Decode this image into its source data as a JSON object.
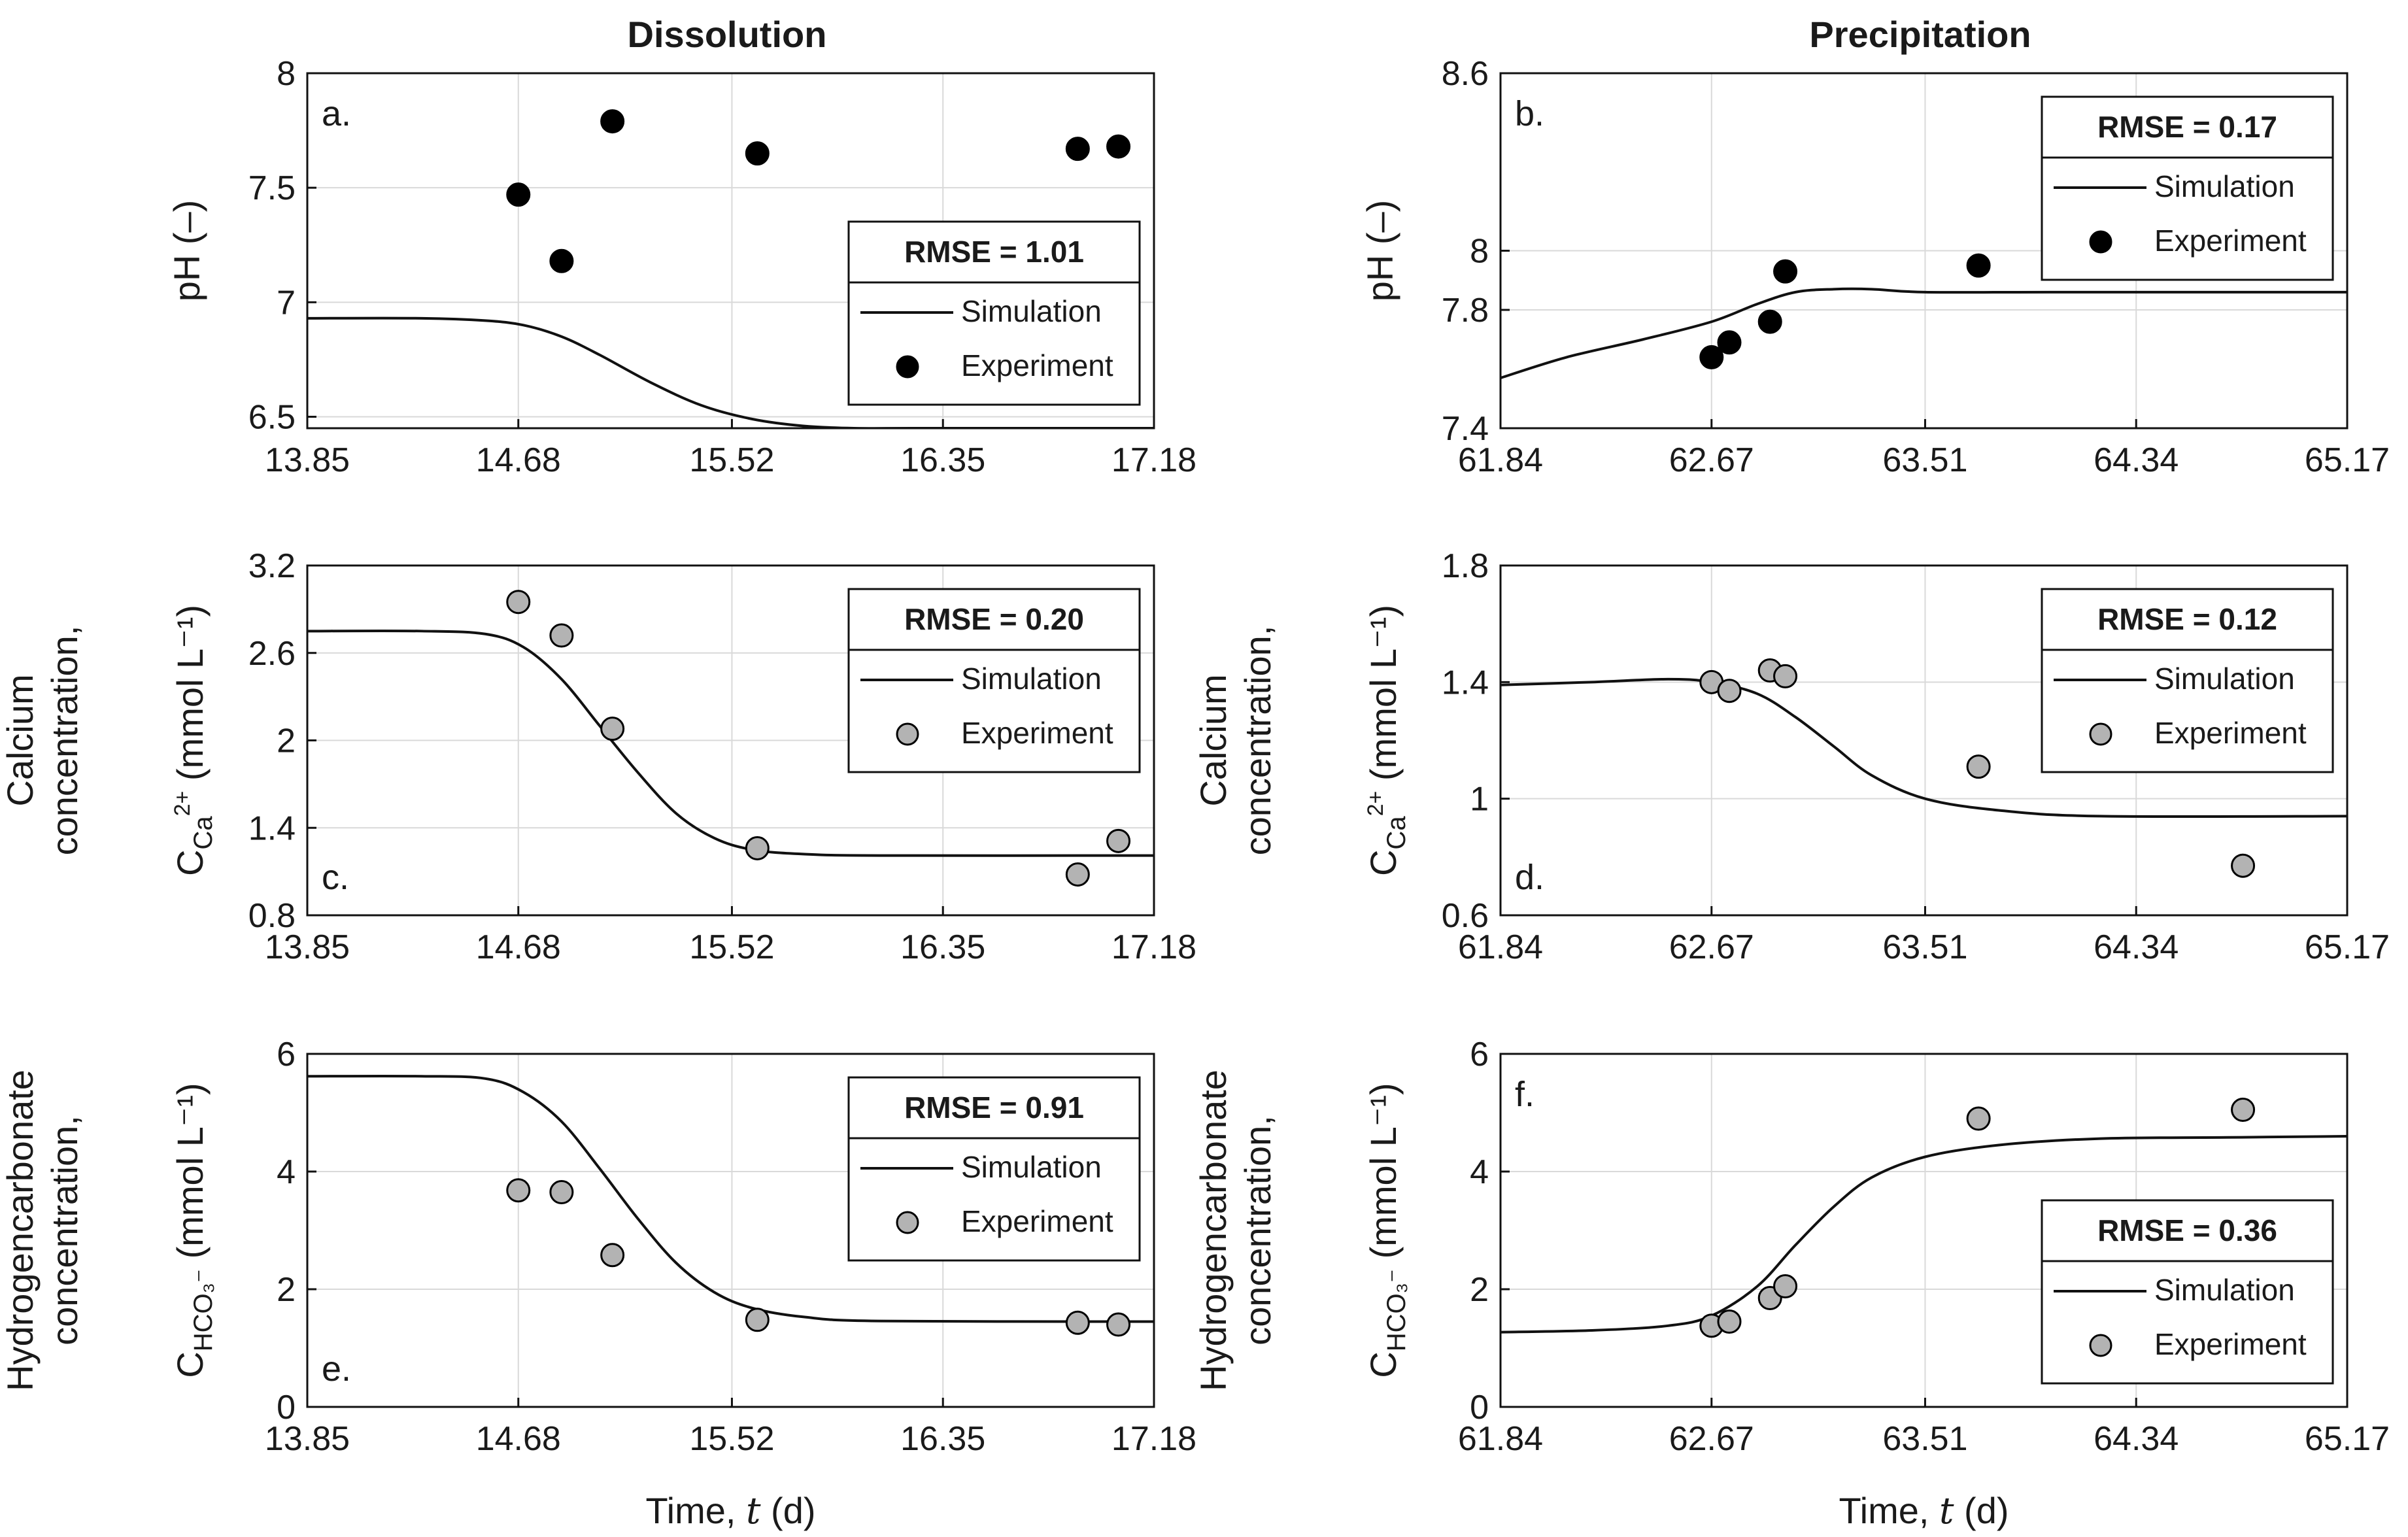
{
  "figure": {
    "col_titles": [
      "Dissolution",
      "Precipitation"
    ],
    "x_axis_label": {
      "prefix": "Time, ",
      "var": "t",
      "suffix": " (d)"
    },
    "legend_sim_label": "Simulation",
    "legend_exp_label": "Experiment"
  },
  "row_labels": [
    {
      "lines": [],
      "quantity": "pH (–)",
      "symbol": "",
      "sub": "",
      "sup": "",
      "unit": ""
    },
    {
      "lines": [
        "Calcium",
        "concentration,"
      ],
      "quantity": "",
      "symbol": "C",
      "sub": "Ca",
      "sup": "2+",
      "unit": "(mmol L⁻¹)"
    },
    {
      "lines": [
        "Hydrogencarbonate",
        "concentration,"
      ],
      "quantity": "",
      "symbol": "C",
      "sub": "HCO₃⁻",
      "sup": "",
      "unit": "(mmol L⁻¹)"
    }
  ],
  "colors": {
    "frame": "#111111",
    "grid": "#d9d9d9",
    "marker_black": "#000000",
    "marker_grey": "#b3b3b3"
  },
  "chart_data": [
    {
      "id": "a",
      "letter": "a.",
      "type": "scatter",
      "series_type": "line+scatter",
      "xlim": [
        13.85,
        17.18
      ],
      "xticks": [
        "13.85",
        "14.68",
        "15.52",
        "16.35",
        "17.18"
      ],
      "ylim": [
        6.45,
        8.0
      ],
      "yticks": [
        "6.5",
        "7",
        "7.5",
        "8"
      ],
      "simulation": {
        "name": "Simulation",
        "x": [
          13.85,
          14.3,
          14.55,
          14.7,
          14.85,
          15.0,
          15.2,
          15.4,
          15.6,
          15.8,
          16.0,
          16.3,
          17.18
        ],
        "y": [
          6.93,
          6.93,
          6.92,
          6.9,
          6.85,
          6.77,
          6.65,
          6.55,
          6.49,
          6.46,
          6.45,
          6.45,
          6.45
        ]
      },
      "experiment": {
        "name": "Experiment",
        "x": [
          14.68,
          14.85,
          15.05,
          15.62,
          16.88,
          17.04
        ],
        "y": [
          7.47,
          7.18,
          7.79,
          7.65,
          7.67,
          7.68
        ]
      },
      "rmse": "RMSE = 1.01",
      "legend_pos": "lower-right",
      "marker_color": "marker_black"
    },
    {
      "id": "b",
      "letter": "b.",
      "type": "scatter",
      "series_type": "line+scatter",
      "xlim": [
        61.84,
        65.17
      ],
      "xticks": [
        "61.84",
        "62.67",
        "63.51",
        "64.34",
        "65.17"
      ],
      "ylim": [
        7.4,
        8.6
      ],
      "yticks": [
        "7.4",
        "7.8",
        "8",
        "8.6"
      ],
      "simulation": {
        "name": "Simulation",
        "x": [
          61.84,
          62.1,
          62.4,
          62.67,
          62.85,
          63.0,
          63.15,
          63.3,
          63.51,
          64.0,
          65.17
        ],
        "y": [
          7.57,
          7.64,
          7.7,
          7.76,
          7.82,
          7.86,
          7.87,
          7.87,
          7.86,
          7.86,
          7.86
        ]
      },
      "experiment": {
        "name": "Experiment",
        "x": [
          62.67,
          62.74,
          62.9,
          62.96,
          63.72
        ],
        "y": [
          7.64,
          7.69,
          7.76,
          7.93,
          7.95
        ]
      },
      "rmse": "RMSE = 0.17",
      "legend_pos": "upper-right",
      "marker_color": "marker_black"
    },
    {
      "id": "c",
      "letter": "c.",
      "type": "scatter",
      "series_type": "line+scatter",
      "xlim": [
        13.85,
        17.18
      ],
      "xticks": [
        "13.85",
        "14.68",
        "15.52",
        "16.35",
        "17.18"
      ],
      "ylim": [
        0.8,
        3.2
      ],
      "yticks": [
        "0.8",
        "1.4",
        "2",
        "2.6",
        "3.2"
      ],
      "simulation": {
        "name": "Simulation",
        "x": [
          13.85,
          14.3,
          14.55,
          14.7,
          14.85,
          15.0,
          15.15,
          15.3,
          15.45,
          15.6,
          15.8,
          16.1,
          17.18
        ],
        "y": [
          2.75,
          2.75,
          2.73,
          2.64,
          2.42,
          2.1,
          1.78,
          1.5,
          1.33,
          1.25,
          1.22,
          1.21,
          1.21
        ]
      },
      "experiment": {
        "name": "Experiment",
        "x": [
          14.68,
          14.85,
          15.05,
          15.62,
          16.88,
          17.04
        ],
        "y": [
          2.95,
          2.72,
          2.08,
          1.26,
          1.08,
          1.31
        ]
      },
      "rmse": "RMSE = 0.20",
      "legend_pos": "upper-right",
      "marker_color": "marker_grey"
    },
    {
      "id": "d",
      "letter": "d.",
      "type": "scatter",
      "series_type": "line+scatter",
      "xlim": [
        61.84,
        65.17
      ],
      "xticks": [
        "61.84",
        "62.67",
        "63.51",
        "64.34",
        "65.17"
      ],
      "ylim": [
        0.6,
        1.8
      ],
      "yticks": [
        "0.6",
        "1",
        "1.4",
        "1.8"
      ],
      "simulation": {
        "name": "Simulation",
        "x": [
          61.84,
          62.2,
          62.5,
          62.67,
          62.85,
          63.0,
          63.15,
          63.3,
          63.51,
          63.8,
          64.2,
          65.17
        ],
        "y": [
          1.39,
          1.4,
          1.41,
          1.4,
          1.36,
          1.28,
          1.18,
          1.08,
          1.0,
          0.96,
          0.94,
          0.94
        ]
      },
      "experiment": {
        "name": "Experiment",
        "x": [
          62.67,
          62.74,
          62.9,
          62.96,
          63.72,
          64.76
        ],
        "y": [
          1.4,
          1.37,
          1.44,
          1.42,
          1.11,
          0.77
        ]
      },
      "rmse": "RMSE = 0.12",
      "legend_pos": "upper-right",
      "marker_color": "marker_grey"
    },
    {
      "id": "e",
      "letter": "e.",
      "type": "scatter",
      "series_type": "line+scatter",
      "xlim": [
        13.85,
        17.18
      ],
      "xticks": [
        "13.85",
        "14.68",
        "15.52",
        "16.35",
        "17.18"
      ],
      "ylim": [
        0,
        6
      ],
      "yticks": [
        "0",
        "2",
        "4",
        "6"
      ],
      "simulation": {
        "name": "Simulation",
        "x": [
          13.85,
          14.3,
          14.55,
          14.7,
          14.85,
          15.0,
          15.15,
          15.3,
          15.45,
          15.6,
          15.8,
          16.1,
          17.18
        ],
        "y": [
          5.62,
          5.62,
          5.58,
          5.35,
          4.85,
          4.05,
          3.2,
          2.45,
          1.95,
          1.68,
          1.53,
          1.46,
          1.45
        ]
      },
      "experiment": {
        "name": "Experiment",
        "x": [
          14.68,
          14.85,
          15.05,
          15.62,
          16.88,
          17.04
        ],
        "y": [
          3.68,
          3.65,
          2.58,
          1.48,
          1.43,
          1.4
        ]
      },
      "rmse": "RMSE = 0.91",
      "legend_pos": "upper-right",
      "marker_color": "marker_grey"
    },
    {
      "id": "f",
      "letter": "f.",
      "type": "scatter",
      "series_type": "line+scatter",
      "xlim": [
        61.84,
        65.17
      ],
      "xticks": [
        "61.84",
        "62.67",
        "63.51",
        "64.34",
        "65.17"
      ],
      "ylim": [
        0,
        6
      ],
      "yticks": [
        "0",
        "2",
        "4",
        "6"
      ],
      "simulation": {
        "name": "Simulation",
        "x": [
          61.84,
          62.2,
          62.5,
          62.67,
          62.85,
          63.0,
          63.15,
          63.3,
          63.51,
          63.8,
          64.2,
          64.7,
          65.17
        ],
        "y": [
          1.27,
          1.3,
          1.38,
          1.55,
          2.05,
          2.75,
          3.4,
          3.9,
          4.25,
          4.45,
          4.56,
          4.58,
          4.6
        ]
      },
      "experiment": {
        "name": "Experiment",
        "x": [
          62.67,
          62.74,
          62.9,
          62.96,
          63.72,
          64.76
        ],
        "y": [
          1.38,
          1.45,
          1.85,
          2.05,
          4.9,
          5.05
        ]
      },
      "rmse": "RMSE = 0.36",
      "legend_pos": "lower-right",
      "marker_color": "marker_grey"
    }
  ]
}
